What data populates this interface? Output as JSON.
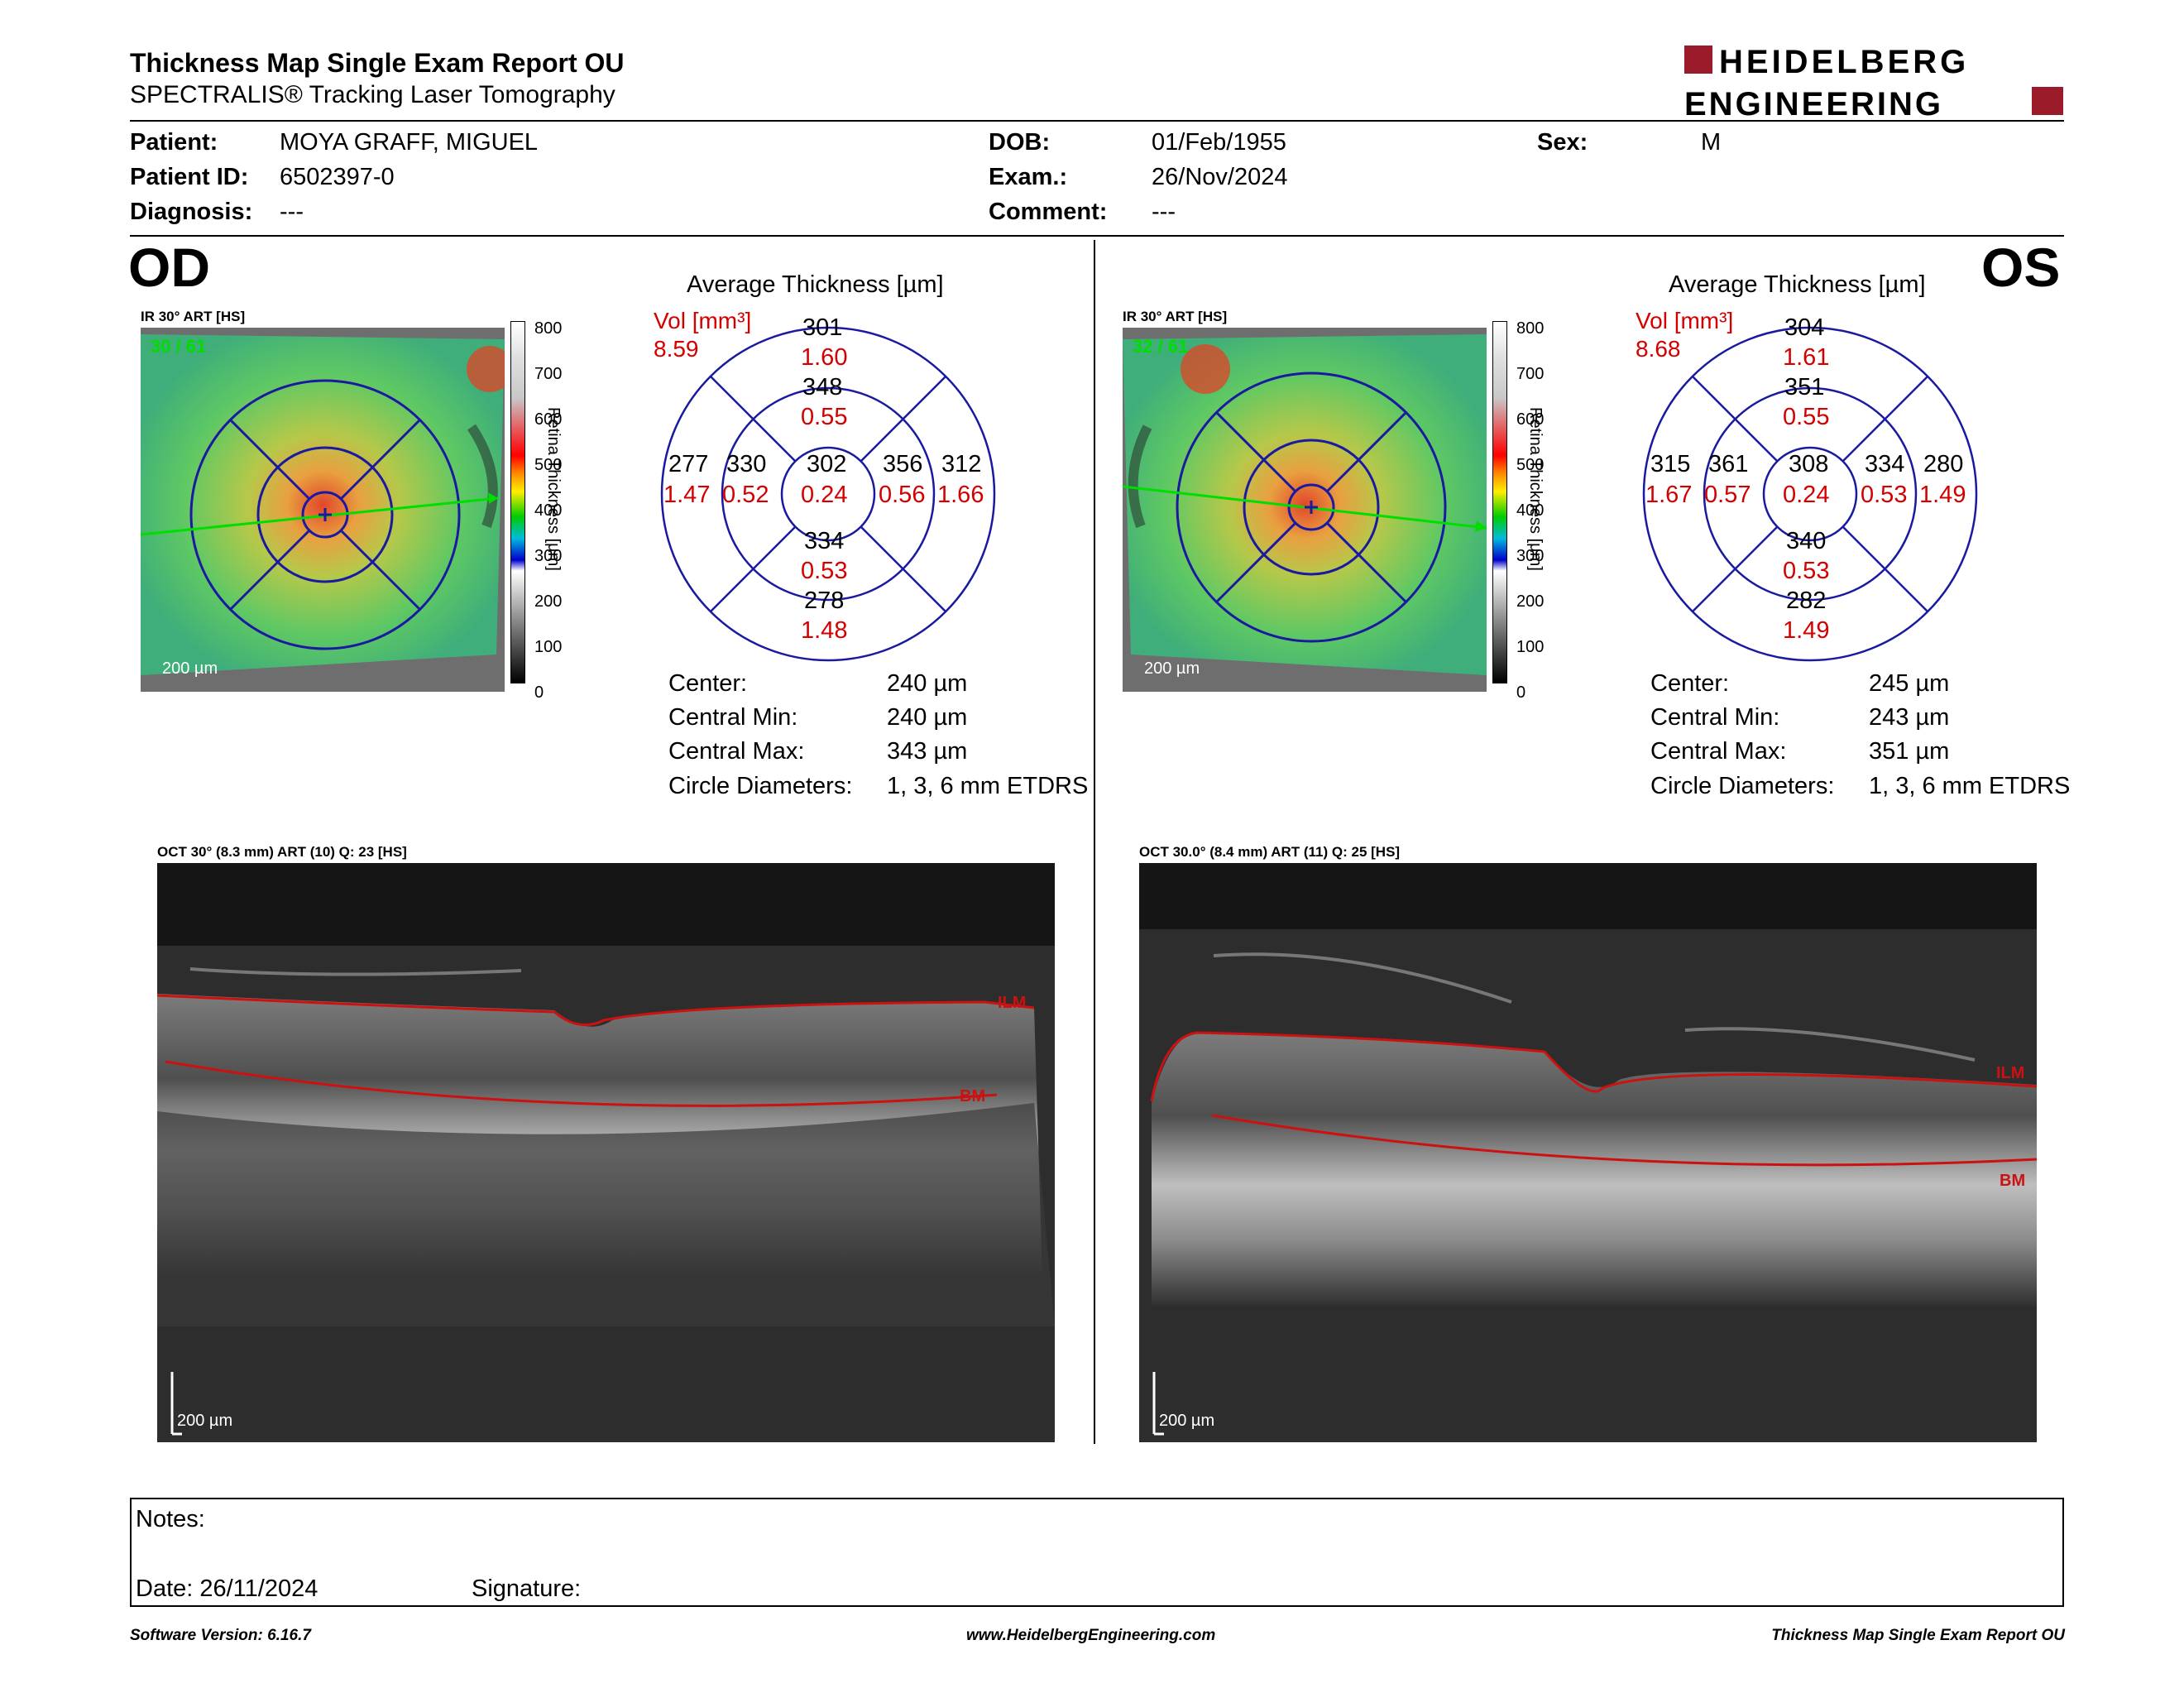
{
  "header": {
    "title": "Thickness Map Single Exam Report OU",
    "subtitle": "SPECTRALIS® Tracking Laser Tomography",
    "logo_line1": "HEIDELBERG",
    "logo_line2": "ENGINEERING",
    "brand_color": "#9b1b2a"
  },
  "patient": {
    "patient_label": "Patient:",
    "patient_value": "MOYA GRAFF, MIGUEL",
    "id_label": "Patient ID:",
    "id_value": "6502397-0",
    "diagnosis_label": "Diagnosis:",
    "diagnosis_value": "---",
    "dob_label": "DOB:",
    "dob_value": "01/Feb/1955",
    "exam_label": "Exam.:",
    "exam_value": "26/Nov/2024",
    "comment_label": "Comment:",
    "comment_value": "---",
    "sex_label": "Sex:",
    "sex_value": "M"
  },
  "od": {
    "eye": "OD",
    "ir_label": "IR 30° ART [HS]",
    "frame_count": "30 / 61",
    "scale": "200 µm",
    "colorbar_ticks": [
      "800",
      "700",
      "600",
      "500",
      "400",
      "300",
      "200",
      "100",
      "0"
    ],
    "colorbar_title": "Retina Thickness [µm]",
    "avg_title": "Average Thickness [µm]",
    "vol_label": "Vol [mm³]",
    "vol_total": "8.59",
    "sectors": {
      "outer_sup": {
        "t": "301",
        "v": "1.60"
      },
      "inner_sup": {
        "t": "348",
        "v": "0.55"
      },
      "outer_temp": {
        "t": "277",
        "v": "1.47"
      },
      "inner_temp": {
        "t": "330",
        "v": "0.52"
      },
      "center": {
        "t": "302",
        "v": "0.24"
      },
      "inner_nas": {
        "t": "356",
        "v": "0.56"
      },
      "outer_nas": {
        "t": "312",
        "v": "1.66"
      },
      "inner_inf": {
        "t": "334",
        "v": "0.53"
      },
      "outer_inf": {
        "t": "278",
        "v": "1.48"
      }
    },
    "stats": {
      "center_label": "Center:",
      "center_value": "240 µm",
      "min_label": "Central Min:",
      "min_value": "240 µm",
      "max_label": "Central Max:",
      "max_value": "343 µm",
      "circ_label": "Circle Diameters:",
      "circ_value": "1, 3, 6 mm ETDRS"
    },
    "oct_label": "OCT 30° (8.3 mm) ART (10) Q: 23 [HS]",
    "ilm": "ILM",
    "bm": "BM",
    "oct_scale": "200 µm"
  },
  "os": {
    "eye": "OS",
    "ir_label": "IR 30° ART [HS]",
    "frame_count": "32 / 61",
    "scale": "200 µm",
    "colorbar_ticks": [
      "800",
      "700",
      "600",
      "500",
      "400",
      "300",
      "200",
      "100",
      "0"
    ],
    "colorbar_title": "Retina Thickness [µm]",
    "avg_title": "Average Thickness [µm]",
    "vol_label": "Vol [mm³]",
    "vol_total": "8.68",
    "sectors": {
      "outer_sup": {
        "t": "304",
        "v": "1.61"
      },
      "inner_sup": {
        "t": "351",
        "v": "0.55"
      },
      "outer_temp": {
        "t": "280",
        "v": "1.49"
      },
      "inner_temp": {
        "t": "334",
        "v": "0.53"
      },
      "center": {
        "t": "308",
        "v": "0.24"
      },
      "inner_nas": {
        "t": "361",
        "v": "0.57"
      },
      "outer_nas": {
        "t": "315",
        "v": "1.67"
      },
      "inner_inf": {
        "t": "340",
        "v": "0.53"
      },
      "outer_inf": {
        "t": "282",
        "v": "1.49"
      }
    },
    "stats": {
      "center_label": "Center:",
      "center_value": "245 µm",
      "min_label": "Central Min:",
      "min_value": "243 µm",
      "max_label": "Central Max:",
      "max_value": "351 µm",
      "circ_label": "Circle Diameters:",
      "circ_value": "1, 3, 6 mm ETDRS"
    },
    "oct_label": "OCT 30.0° (8.4 mm) ART (11) Q: 25 [HS]",
    "ilm": "ILM",
    "bm": "BM",
    "oct_scale": "200 µm"
  },
  "notes": {
    "notes_label": "Notes:",
    "date_label": "Date: 26/11/2024",
    "signature_label": "Signature:"
  },
  "footer": {
    "software": "Software Version: 6.16.7",
    "website": "www.HeidelbergEngineering.com",
    "report": "Thickness Map Single Exam Report OU"
  },
  "colors": {
    "value_red": "#d40000",
    "grid_blue": "#1a1aa0",
    "scan_green": "#00dd00",
    "layer_red": "#cc1111"
  }
}
